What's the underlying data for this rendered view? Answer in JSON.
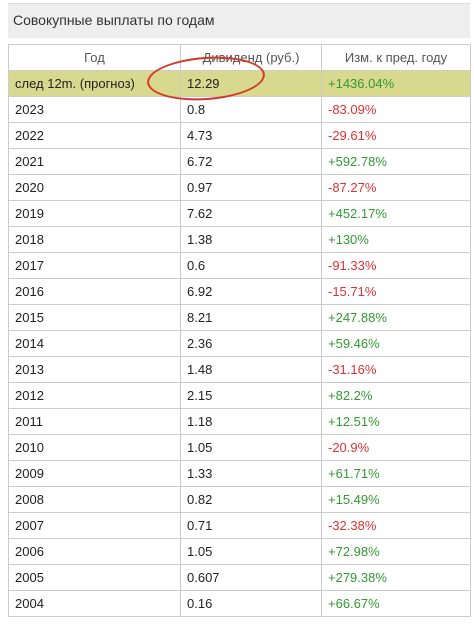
{
  "title": "Совокупные выплаты по годам",
  "columns": {
    "year": "Год",
    "dividend": "Дивиденд (руб.)",
    "change": "Изм. к пред. году"
  },
  "rows": [
    {
      "year": "след 12m. (прогноз)",
      "dividend": "12.29",
      "change": "+1436.04%",
      "trend": "pos",
      "highlight": true
    },
    {
      "year": "2023",
      "dividend": "0.8",
      "change": "-83.09%",
      "trend": "neg"
    },
    {
      "year": "2022",
      "dividend": "4.73",
      "change": "-29.61%",
      "trend": "neg"
    },
    {
      "year": "2021",
      "dividend": "6.72",
      "change": "+592.78%",
      "trend": "pos"
    },
    {
      "year": "2020",
      "dividend": "0.97",
      "change": "-87.27%",
      "trend": "neg"
    },
    {
      "year": "2019",
      "dividend": "7.62",
      "change": "+452.17%",
      "trend": "pos"
    },
    {
      "year": "2018",
      "dividend": "1.38",
      "change": "+130%",
      "trend": "pos"
    },
    {
      "year": "2017",
      "dividend": "0.6",
      "change": "-91.33%",
      "trend": "neg"
    },
    {
      "year": "2016",
      "dividend": "6.92",
      "change": "-15.71%",
      "trend": "neg"
    },
    {
      "year": "2015",
      "dividend": "8.21",
      "change": "+247.88%",
      "trend": "pos"
    },
    {
      "year": "2014",
      "dividend": "2.36",
      "change": "+59.46%",
      "trend": "pos"
    },
    {
      "year": "2013",
      "dividend": "1.48",
      "change": "-31.16%",
      "trend": "neg"
    },
    {
      "year": "2012",
      "dividend": "2.15",
      "change": "+82.2%",
      "trend": "pos"
    },
    {
      "year": "2011",
      "dividend": "1.18",
      "change": "+12.51%",
      "trend": "pos"
    },
    {
      "year": "2010",
      "dividend": "1.05",
      "change": "-20.9%",
      "trend": "neg"
    },
    {
      "year": "2009",
      "dividend": "1.33",
      "change": "+61.71%",
      "trend": "pos"
    },
    {
      "year": "2008",
      "dividend": "0.82",
      "change": "+15.49%",
      "trend": "pos"
    },
    {
      "year": "2007",
      "dividend": "0.71",
      "change": "-32.38%",
      "trend": "neg"
    },
    {
      "year": "2006",
      "dividend": "1.05",
      "change": "+72.98%",
      "trend": "pos"
    },
    {
      "year": "2005",
      "dividend": "0.607",
      "change": "+279.38%",
      "trend": "pos"
    },
    {
      "year": "2004",
      "dividend": "0.16",
      "change": "+66.67%",
      "trend": "pos"
    }
  ],
  "colors": {
    "positive": "#339933",
    "negative": "#e03232",
    "highlight_row": "#d8d88e",
    "annotation": "#d13a2b"
  }
}
